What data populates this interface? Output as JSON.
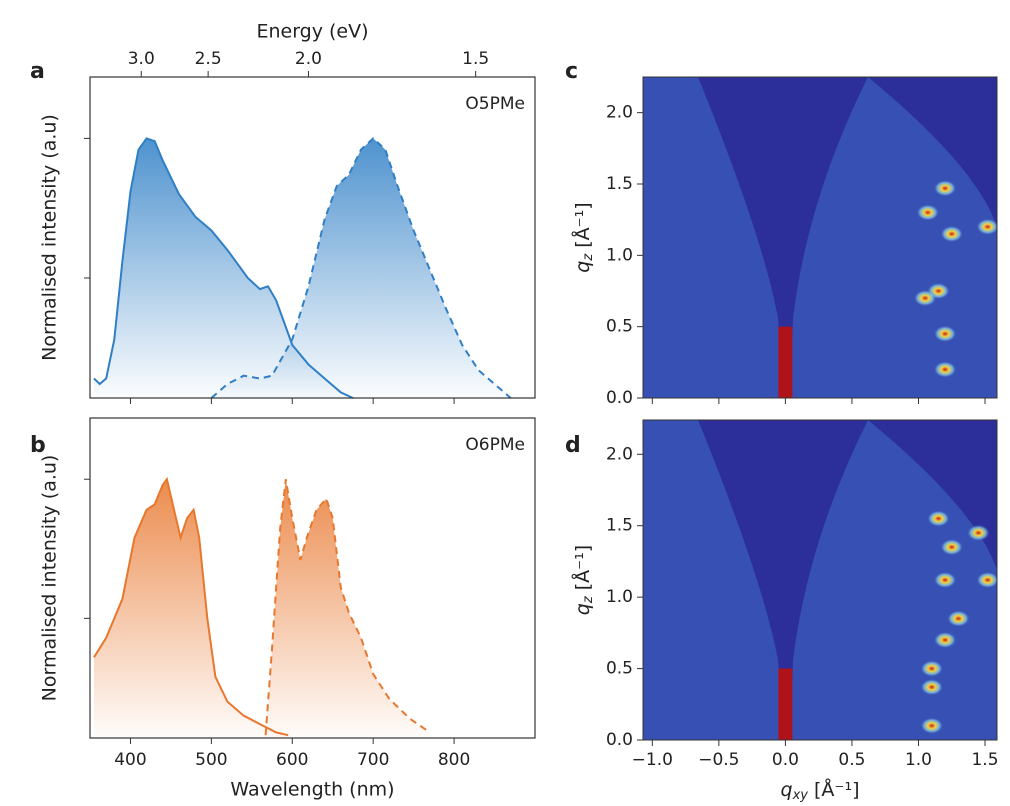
{
  "chart_data": [
    {
      "type": "line",
      "panel": "a",
      "label": "O5PMe",
      "xlim": [
        350,
        900
      ],
      "xticks": [
        400,
        500,
        600,
        700,
        800
      ],
      "xticklabels": false,
      "x2label": "Energy (eV)",
      "x2ticks": [
        {
          "value": 3,
          "label": "3.0"
        },
        {
          "value": 2.5,
          "label": "2.5"
        },
        {
          "value": 2,
          "label": "2.0"
        },
        {
          "value": 1.5,
          "label": "1.5"
        }
      ],
      "ylabel": "Normalised intensity (a.u)",
      "ylim": [
        0.07,
        1.22
      ],
      "yticks": [
        0.5,
        1
      ],
      "series": [
        {
          "color": "#2f7fc6",
          "dash": false,
          "x": [
            355,
            362,
            370,
            380,
            390,
            400,
            410,
            420,
            430,
            440,
            460,
            480,
            500,
            520,
            530,
            545,
            560,
            570,
            580,
            600,
            620,
            640,
            660,
            675
          ],
          "values": [
            0.14,
            0.12,
            0.14,
            0.28,
            0.56,
            0.81,
            0.96,
            1.0,
            0.99,
            0.92,
            0.8,
            0.72,
            0.67,
            0.6,
            0.56,
            0.5,
            0.46,
            0.47,
            0.42,
            0.26,
            0.19,
            0.14,
            0.09,
            0.07
          ]
        },
        {
          "color": "#2f7fc6",
          "dash": true,
          "x": [
            500,
            520,
            540,
            560,
            575,
            600,
            620,
            640,
            655,
            670,
            685,
            700,
            715,
            730,
            750,
            770,
            790,
            810,
            830,
            850,
            870
          ],
          "values": [
            0.07,
            0.12,
            0.15,
            0.14,
            0.15,
            0.28,
            0.47,
            0.71,
            0.83,
            0.87,
            0.96,
            1.0,
            0.96,
            0.83,
            0.67,
            0.53,
            0.39,
            0.26,
            0.17,
            0.12,
            0.07
          ]
        }
      ]
    },
    {
      "type": "line",
      "panel": "b",
      "label": "O6PMe",
      "xlim": [
        350,
        900
      ],
      "xticks": [
        400,
        500,
        600,
        700,
        800
      ],
      "xticklabels": true,
      "xlabel": "Wavelength (nm)",
      "ylabel": "Normalised intensity (a.u)",
      "ylim": [
        0.07,
        1.22
      ],
      "yticks": [
        0.5,
        1
      ],
      "series": [
        {
          "color": "#e8772e",
          "dash": false,
          "x": [
            355,
            370,
            390,
            405,
            420,
            430,
            440,
            445,
            455,
            462,
            470,
            478,
            485,
            495,
            505,
            520,
            540,
            560,
            580,
            595
          ],
          "values": [
            0.36,
            0.43,
            0.57,
            0.79,
            0.89,
            0.91,
            0.98,
            1.0,
            0.875,
            0.79,
            0.86,
            0.89,
            0.79,
            0.5,
            0.29,
            0.2,
            0.15,
            0.12,
            0.09,
            0.08
          ]
        },
        {
          "color": "#e8772e",
          "dash": true,
          "x": [
            567,
            575,
            585,
            592,
            600,
            610,
            618,
            630,
            642,
            650,
            660,
            670,
            685,
            700,
            720,
            745,
            770
          ],
          "values": [
            0.08,
            0.39,
            0.82,
            1.0,
            0.86,
            0.71,
            0.79,
            0.89,
            0.93,
            0.86,
            0.61,
            0.52,
            0.43,
            0.3,
            0.21,
            0.14,
            0.09
          ]
        }
      ]
    },
    {
      "type": "heatmap",
      "panel": "c",
      "xlim": [
        -1.07,
        1.59
      ],
      "xticks": [
        -1,
        -0.5,
        0,
        0.5,
        1,
        1.5
      ],
      "xticklabels": false,
      "ylabel": {
        "symbol": "q",
        "subscript": "z",
        "unit": " [Å⁻¹]"
      },
      "ylim": [
        0,
        2.25
      ],
      "yticks": [
        {
          "value": 0,
          "label": "0.0"
        },
        {
          "value": 0.5,
          "label": "0.5"
        },
        {
          "value": 1,
          "label": "1.0"
        },
        {
          "value": 1.5,
          "label": "1.5"
        },
        {
          "value": 2,
          "label": "2.0"
        }
      ],
      "spots": {
        "x": [
          1.2,
          1.52,
          1.07,
          1.25,
          1.15,
          1.2,
          1.2,
          1.05
        ],
        "y": [
          1.47,
          1.2,
          1.3,
          1.15,
          0.75,
          0.45,
          0.2,
          0.7
        ]
      }
    },
    {
      "type": "heatmap",
      "panel": "d",
      "xlim": [
        -1.07,
        1.59
      ],
      "xticks": [
        {
          "value": -1,
          "label": "−1.0"
        },
        {
          "value": -0.5,
          "label": "−0.5"
        },
        {
          "value": 0,
          "label": "0.0"
        },
        {
          "value": 0.5,
          "label": "0.5"
        },
        {
          "value": 1,
          "label": "1.0"
        },
        {
          "value": 1.5,
          "label": "1.5"
        }
      ],
      "xticklabels": true,
      "xlabel": {
        "symbol": "q",
        "subscript": "xy",
        "unit": " [Å⁻¹]"
      },
      "ylabel": {
        "symbol": "q",
        "subscript": "z",
        "unit": " [Å⁻¹]"
      },
      "ylim": [
        0,
        2.24
      ],
      "yticks": [
        {
          "value": 0,
          "label": "0.0"
        },
        {
          "value": 0.5,
          "label": "0.5"
        },
        {
          "value": 1,
          "label": "1.0"
        },
        {
          "value": 1.5,
          "label": "1.5"
        },
        {
          "value": 2,
          "label": "2.0"
        }
      ],
      "spots": {
        "x": [
          1.2,
          1.52,
          1.1,
          1.1,
          1.1,
          1.2,
          1.3,
          1.25,
          1.45,
          1.15
        ],
        "y": [
          1.12,
          1.12,
          0.5,
          0.37,
          0.1,
          0.7,
          0.85,
          1.35,
          1.45,
          1.55
        ]
      }
    }
  ]
}
